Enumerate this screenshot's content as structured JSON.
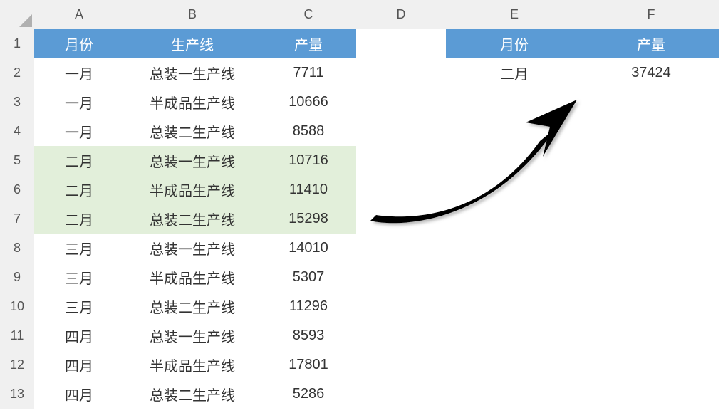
{
  "colors": {
    "header_bg": "#5b9bd5",
    "header_fg": "#ffffff",
    "highlight_bg": "#e2efda",
    "cell_border": "#bfbfbf",
    "grid_header_bg": "#f0f0f0",
    "arrow_fill": "#000000"
  },
  "columns": [
    "A",
    "B",
    "C",
    "D",
    "E",
    "F"
  ],
  "row_count": 13,
  "main_table": {
    "headers": {
      "month": "月份",
      "line": "生产线",
      "output": "产量"
    },
    "rows": [
      {
        "month": "一月",
        "line": "总装一生产线",
        "output": "7711",
        "hl": false
      },
      {
        "month": "一月",
        "line": "半成品生产线",
        "output": "10666",
        "hl": false
      },
      {
        "month": "一月",
        "line": "总装二生产线",
        "output": "8588",
        "hl": false
      },
      {
        "month": "二月",
        "line": "总装一生产线",
        "output": "10716",
        "hl": true
      },
      {
        "month": "二月",
        "line": "半成品生产线",
        "output": "11410",
        "hl": true
      },
      {
        "month": "二月",
        "line": "总装二生产线",
        "output": "15298",
        "hl": true
      },
      {
        "month": "三月",
        "line": "总装一生产线",
        "output": "14010",
        "hl": false
      },
      {
        "month": "三月",
        "line": "半成品生产线",
        "output": "5307",
        "hl": false
      },
      {
        "month": "三月",
        "line": "总装二生产线",
        "output": "11296",
        "hl": false
      },
      {
        "month": "四月",
        "line": "总装一生产线",
        "output": "8593",
        "hl": false
      },
      {
        "month": "四月",
        "line": "半成品生产线",
        "output": "17801",
        "hl": false
      },
      {
        "month": "四月",
        "line": "总装二生产线",
        "output": "5286",
        "hl": false
      }
    ]
  },
  "summary_table": {
    "headers": {
      "month": "月份",
      "output": "产量"
    },
    "row": {
      "month": "二月",
      "output": "37424"
    }
  }
}
